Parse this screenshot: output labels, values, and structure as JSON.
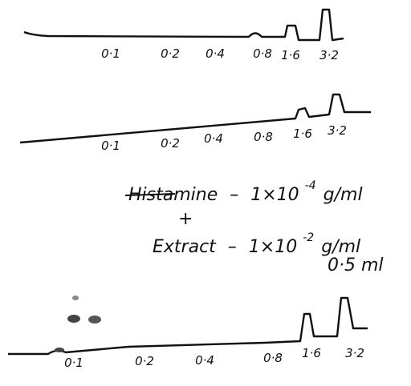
{
  "traces": [
    {
      "labels": [
        "0·1",
        "0·2",
        "0·4",
        "0·8",
        "1·6",
        "3·2"
      ]
    },
    {
      "labels": [
        "0·1",
        "0·2",
        "0·4",
        "0·8",
        "1·6",
        "3·2"
      ]
    },
    {
      "labels": [
        "0·1",
        "0·2",
        "0·4",
        "0·8",
        "1·6",
        "3·2"
      ]
    }
  ],
  "annotation": {
    "histamine": {
      "name": "Histamine",
      "dash": "–",
      "amount": "1×10",
      "exponent": "-4",
      "unit": "g/ml"
    },
    "plus": "+",
    "extract": {
      "name": "Extract",
      "dash": "–",
      "amount": "1×10",
      "exponent": "-2",
      "unit": "g/ml"
    },
    "volume": "0·5 ml"
  }
}
